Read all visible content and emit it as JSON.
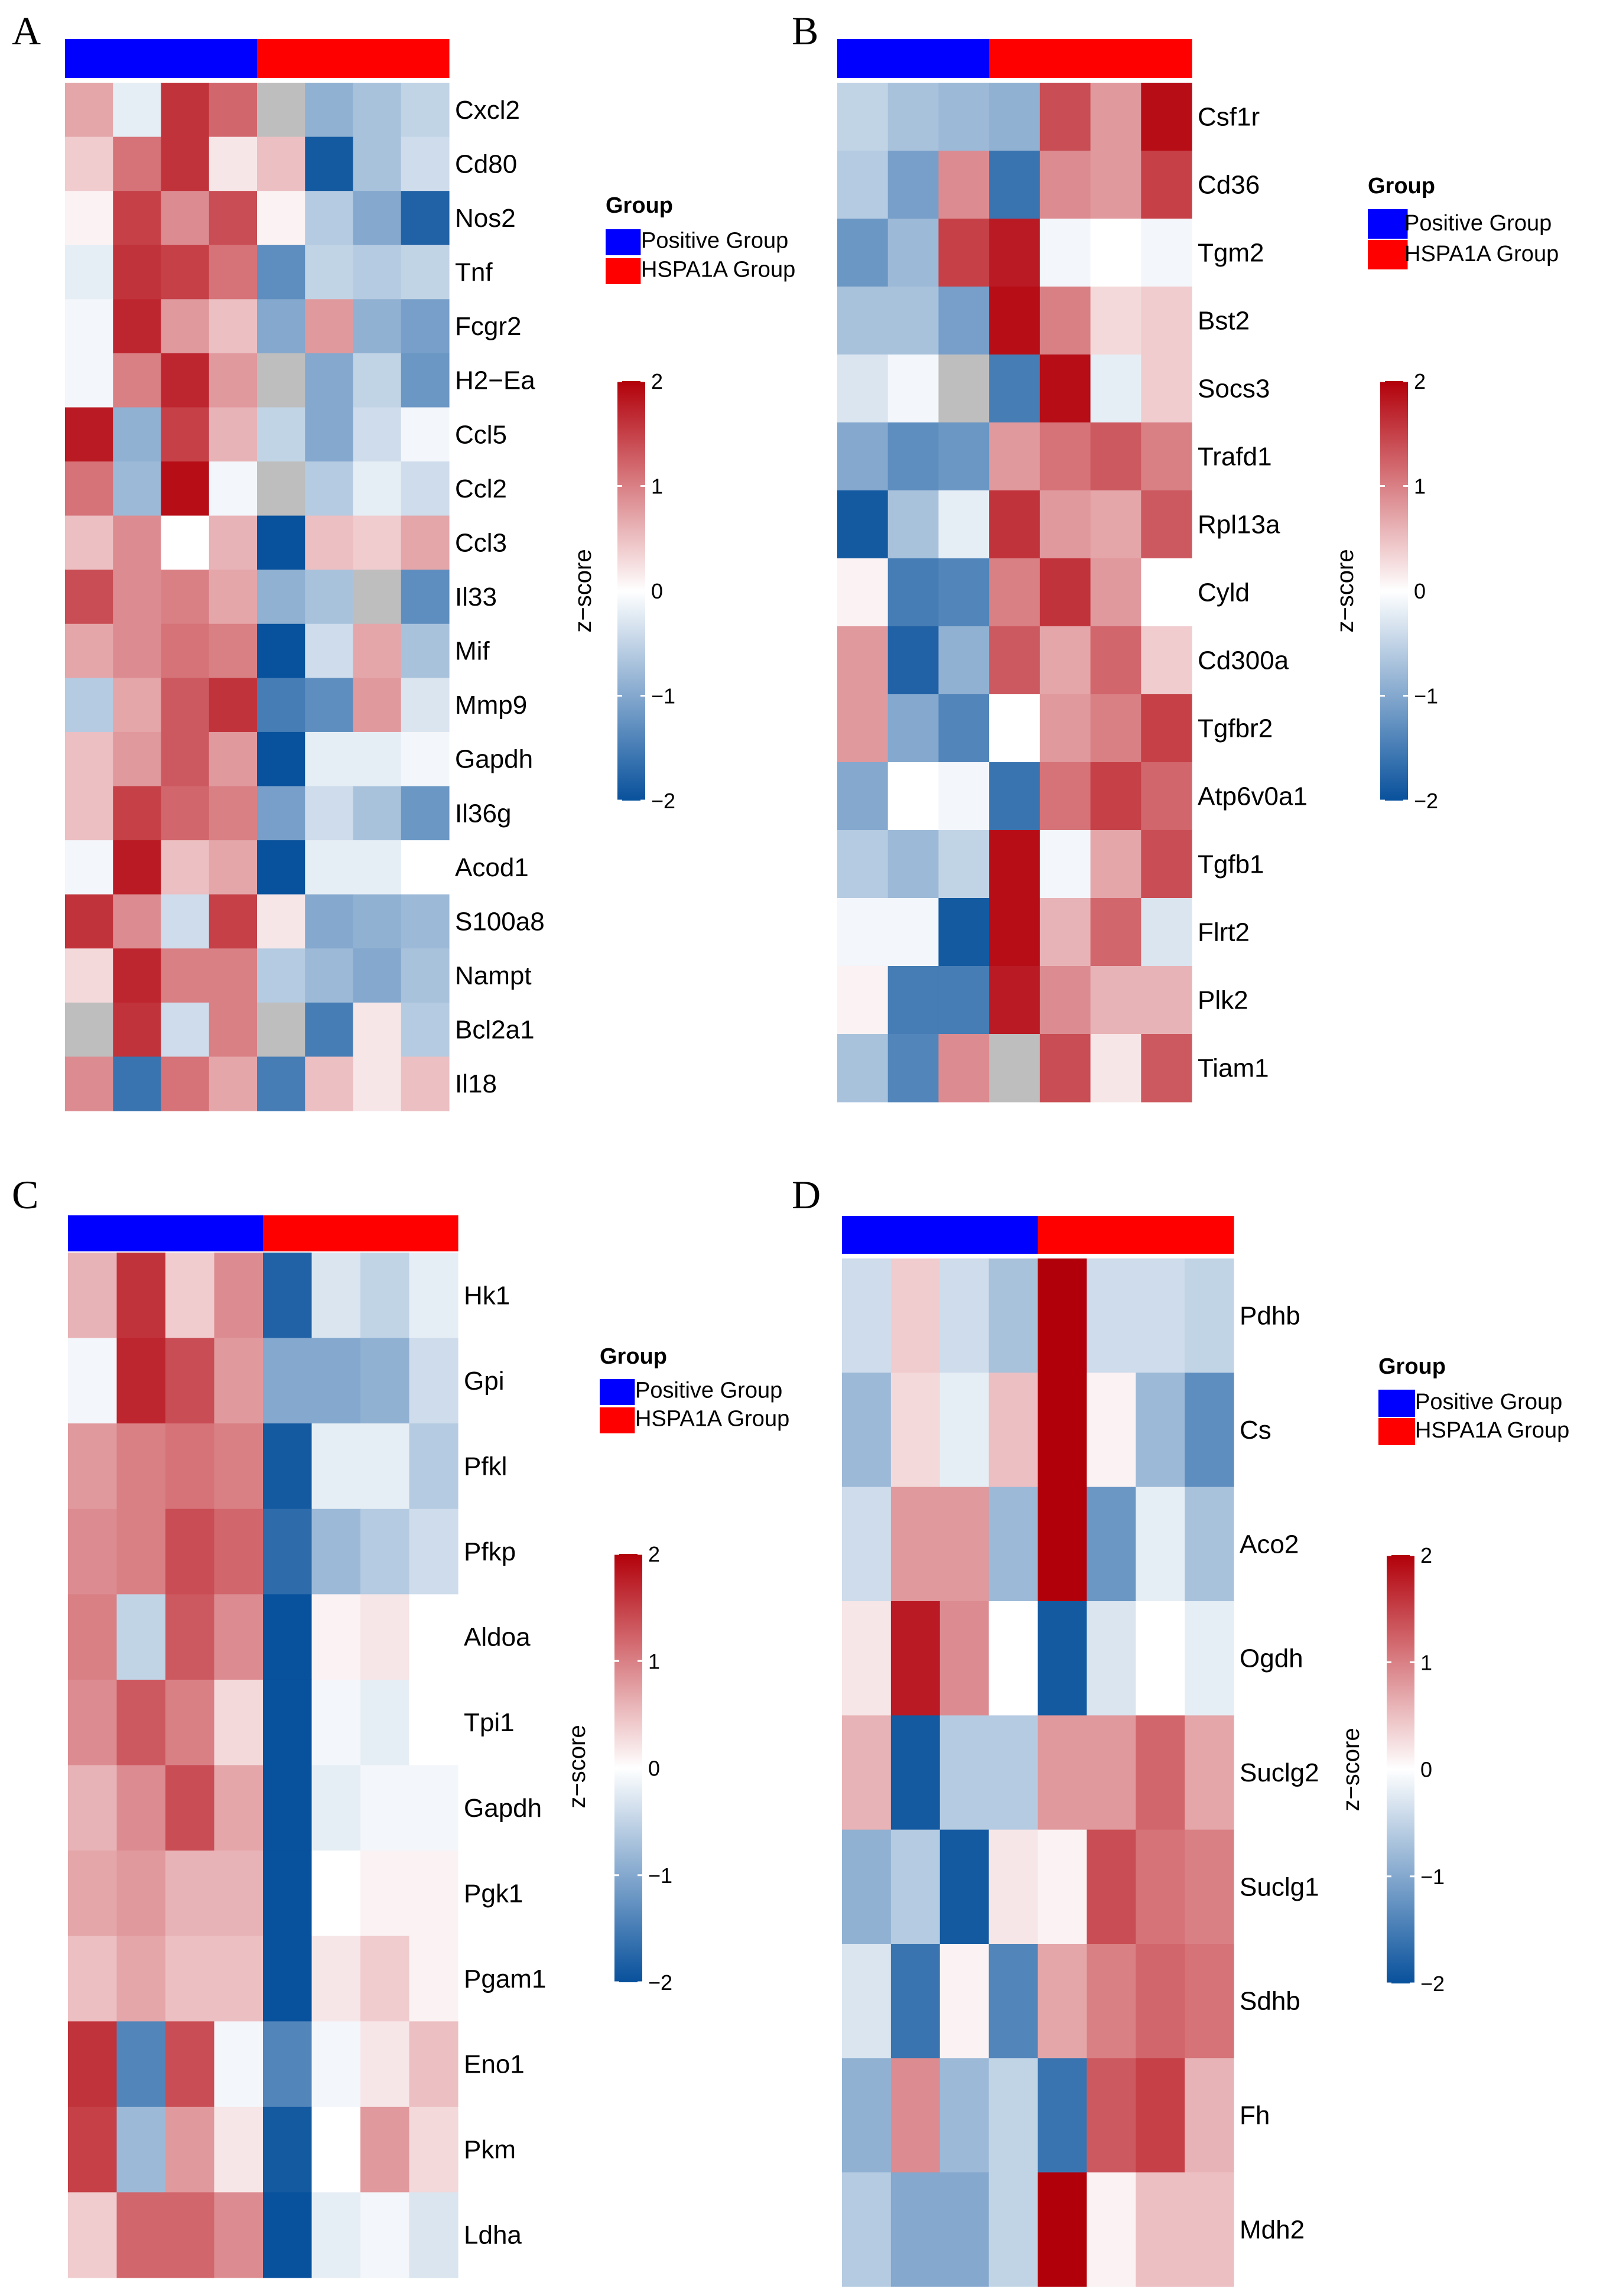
{
  "chart_data": [
    {
      "type": "heatmap",
      "panel": "A",
      "group_title": "Group",
      "group_labels": [
        "Positive Group",
        "HSPA1A Group"
      ],
      "group_colors": [
        "#0000ff",
        "#ff0000"
      ],
      "colorbar_label": "z−score",
      "colorbar_ticks": [
        "2",
        "1",
        "0",
        "−1",
        "−2"
      ],
      "colorbar_values": [
        2,
        1,
        0,
        -1,
        -2
      ],
      "color_range": [
        -2,
        2
      ],
      "colors": {
        "low": "#08519c",
        "mid": "#ffffff",
        "high": "#b2000a"
      },
      "column_groups": [
        0,
        0,
        0,
        0,
        1,
        1,
        1,
        1
      ],
      "genes": [
        "Cxcl2",
        "Cd80",
        "Nos2",
        "Tnf",
        "Fcgr2",
        "H2−Ea",
        "Ccl5",
        "Ccl2",
        "Ccl3",
        "Il33",
        "Mif",
        "Mmp9",
        "Gapdh",
        "Il36g",
        "Acod1",
        "S100a8",
        "Nampt",
        "Bcl2a1",
        "Il18"
      ],
      "values": [
        [
          0.7,
          -0.2,
          1.6,
          1.2,
          "NA",
          -0.9,
          -0.7,
          -0.5
        ],
        [
          0.4,
          1.1,
          1.6,
          0.2,
          0.5,
          -1.9,
          -0.7,
          -0.4
        ],
        [
          0.1,
          1.5,
          0.9,
          1.4,
          0.1,
          -0.6,
          -1.0,
          -1.8
        ],
        [
          -0.2,
          1.6,
          1.5,
          1.1,
          -1.3,
          -0.5,
          -0.6,
          -0.5
        ],
        [
          -0.1,
          1.7,
          0.8,
          0.5,
          -1.0,
          0.8,
          -0.9,
          -1.1
        ],
        [
          -0.1,
          1.0,
          1.7,
          0.8,
          "NA",
          -1.0,
          -0.5,
          -1.2
        ],
        [
          1.8,
          -0.9,
          1.5,
          0.6,
          -0.5,
          -1.0,
          -0.4,
          -0.1
        ],
        [
          1.1,
          -0.8,
          1.9,
          -0.1,
          "NA",
          -0.6,
          -0.2,
          -0.4
        ],
        [
          0.5,
          0.9,
          0.0,
          0.6,
          -2.0,
          0.5,
          0.4,
          0.7
        ],
        [
          1.4,
          0.9,
          1.0,
          0.7,
          -0.9,
          -0.7,
          "NA",
          -1.3
        ],
        [
          0.7,
          0.9,
          1.1,
          1.0,
          -2.0,
          -0.4,
          0.7,
          -0.7
        ],
        [
          -0.6,
          0.7,
          1.3,
          1.6,
          -1.5,
          -1.3,
          0.8,
          -0.3
        ],
        [
          0.5,
          0.8,
          1.3,
          0.8,
          -2.0,
          -0.2,
          -0.2,
          -0.1
        ],
        [
          0.5,
          1.5,
          1.2,
          1.0,
          -1.1,
          -0.4,
          -0.7,
          -1.2
        ],
        [
          -0.1,
          1.8,
          0.5,
          0.7,
          -2.0,
          -0.2,
          -0.2,
          0.0
        ],
        [
          1.6,
          0.9,
          -0.4,
          1.5,
          0.2,
          -1.0,
          -0.9,
          -0.8
        ],
        [
          0.3,
          1.7,
          1.0,
          1.0,
          -0.6,
          -0.8,
          -1.0,
          -0.7
        ],
        [
          "NA",
          1.6,
          -0.4,
          1.0,
          "NA",
          -1.5,
          0.2,
          -0.6
        ],
        [
          0.9,
          -1.6,
          1.1,
          0.7,
          -1.5,
          0.5,
          0.2,
          0.5
        ]
      ]
    },
    {
      "type": "heatmap",
      "panel": "B",
      "group_title": "Group",
      "group_labels": [
        "Positive Group",
        "HSPA1A Group"
      ],
      "group_colors": [
        "#0000ff",
        "#ff0000"
      ],
      "colorbar_label": "z−score",
      "colorbar_ticks": [
        "2",
        "1",
        "0",
        "−1",
        "−2"
      ],
      "colorbar_values": [
        2,
        1,
        0,
        -1,
        -2
      ],
      "color_range": [
        -2,
        2
      ],
      "colors": {
        "low": "#08519c",
        "mid": "#ffffff",
        "high": "#b2000a"
      },
      "column_groups": [
        0,
        0,
        0,
        1,
        1,
        1,
        1
      ],
      "genes": [
        "Csf1r",
        "Cd36",
        "Tgm2",
        "Bst2",
        "Socs3",
        "Trafd1",
        "Rpl13a",
        "Cyld",
        "Cd300a",
        "Tgfbr2",
        "Atp6v0a1",
        "Tgfb1",
        "Flrt2",
        "Plk2",
        "Tiam1"
      ],
      "values": [
        [
          -0.5,
          -0.7,
          -0.8,
          -0.9,
          1.4,
          0.8,
          1.9
        ],
        [
          -0.6,
          -1.1,
          0.9,
          -1.6,
          0.9,
          0.8,
          1.5
        ],
        [
          -1.2,
          -0.8,
          1.5,
          1.8,
          -0.1,
          0.0,
          -0.1
        ],
        [
          -0.7,
          -0.7,
          -1.1,
          1.9,
          1.0,
          0.3,
          0.4
        ],
        [
          -0.3,
          -0.1,
          "NA",
          -1.5,
          1.9,
          -0.2,
          0.4
        ],
        [
          -1.0,
          -1.3,
          -1.2,
          0.8,
          1.1,
          1.3,
          1.0
        ],
        [
          -1.9,
          -0.7,
          -0.2,
          1.6,
          0.8,
          0.7,
          1.3
        ],
        [
          0.1,
          -1.5,
          -1.4,
          1.0,
          1.6,
          0.8,
          0.0
        ],
        [
          0.8,
          -1.8,
          -0.9,
          1.3,
          0.7,
          1.2,
          0.4
        ],
        [
          0.8,
          -1.0,
          -1.4,
          0.0,
          0.8,
          1.0,
          1.5
        ],
        [
          -1.0,
          0.0,
          -0.1,
          -1.6,
          1.1,
          1.5,
          1.2
        ],
        [
          -0.6,
          -0.8,
          -0.5,
          1.9,
          -0.1,
          0.7,
          1.4
        ],
        [
          -0.1,
          -0.1,
          -1.9,
          1.9,
          0.6,
          1.2,
          -0.3
        ],
        [
          0.1,
          -1.5,
          -1.5,
          1.8,
          0.9,
          0.6,
          0.6
        ],
        [
          -0.7,
          -1.4,
          0.9,
          "NA",
          1.4,
          0.2,
          1.3
        ]
      ]
    },
    {
      "type": "heatmap",
      "panel": "C",
      "group_title": "Group",
      "group_labels": [
        "Positive Group",
        "HSPA1A Group"
      ],
      "group_colors": [
        "#0000ff",
        "#ff0000"
      ],
      "colorbar_label": "z−score",
      "colorbar_ticks": [
        "2",
        "1",
        "0",
        "−1",
        "−2"
      ],
      "colorbar_values": [
        2,
        1,
        0,
        -1,
        -2
      ],
      "color_range": [
        -2,
        2
      ],
      "colors": {
        "low": "#08519c",
        "mid": "#ffffff",
        "high": "#b2000a"
      },
      "column_groups": [
        0,
        0,
        0,
        0,
        1,
        1,
        1,
        1
      ],
      "genes": [
        "Hk1",
        "Gpi",
        "Pfkl",
        "Pfkp",
        "Aldoa",
        "Tpi1",
        "Gapdh",
        "Pgk1",
        "Pgam1",
        "Eno1",
        "Pkm",
        "Ldha"
      ],
      "values": [
        [
          0.6,
          1.6,
          0.4,
          0.9,
          -1.8,
          -0.3,
          -0.5,
          -0.2
        ],
        [
          -0.1,
          1.7,
          1.4,
          0.8,
          -1.0,
          -1.0,
          -0.9,
          -0.4
        ],
        [
          0.8,
          1.0,
          1.1,
          1.0,
          -1.9,
          -0.2,
          -0.2,
          -0.6
        ],
        [
          0.9,
          1.0,
          1.4,
          1.2,
          -1.7,
          -0.8,
          -0.6,
          -0.4
        ],
        [
          1.0,
          -0.5,
          1.3,
          0.9,
          -2.0,
          0.1,
          0.2,
          0.0
        ],
        [
          0.9,
          1.3,
          1.0,
          0.3,
          -2.0,
          -0.1,
          -0.2,
          0.0
        ],
        [
          0.6,
          0.9,
          1.4,
          0.7,
          -2.0,
          -0.2,
          -0.1,
          -0.1
        ],
        [
          0.7,
          0.8,
          0.6,
          0.6,
          -2.0,
          0.0,
          0.1,
          0.1
        ],
        [
          0.5,
          0.7,
          0.5,
          0.5,
          -2.0,
          0.2,
          0.4,
          0.1
        ],
        [
          1.6,
          -1.4,
          1.4,
          -0.1,
          -1.4,
          -0.1,
          0.2,
          0.5
        ],
        [
          1.5,
          -0.8,
          0.8,
          0.2,
          -1.9,
          0.0,
          0.8,
          0.3
        ],
        [
          0.4,
          1.2,
          1.2,
          0.9,
          -2.0,
          -0.2,
          -0.1,
          -0.3
        ]
      ]
    },
    {
      "type": "heatmap",
      "panel": "D",
      "group_title": "Group",
      "group_labels": [
        "Positive Group",
        "HSPA1A Group"
      ],
      "group_colors": [
        "#0000ff",
        "#ff0000"
      ],
      "colorbar_label": "z−score",
      "colorbar_ticks": [
        "2",
        "1",
        "0",
        "−1",
        "−2"
      ],
      "colorbar_values": [
        2,
        1,
        0,
        -1,
        -2
      ],
      "color_range": [
        -2,
        2
      ],
      "colors": {
        "low": "#08519c",
        "mid": "#ffffff",
        "high": "#b2000a"
      },
      "column_groups": [
        0,
        0,
        0,
        0,
        1,
        1,
        1,
        1
      ],
      "genes": [
        "Pdhb",
        "Cs",
        "Aco2",
        "Ogdh",
        "Suclg2",
        "Suclg1",
        "Sdhb",
        "Fh",
        "Mdh2"
      ],
      "values": [
        [
          -0.4,
          0.4,
          -0.4,
          -0.7,
          2.0,
          -0.4,
          -0.4,
          -0.5
        ],
        [
          -0.8,
          0.3,
          -0.2,
          0.5,
          2.0,
          0.1,
          -0.8,
          -1.3
        ],
        [
          -0.4,
          0.8,
          0.8,
          -0.8,
          2.0,
          -1.2,
          -0.2,
          -0.7
        ],
        [
          0.2,
          1.8,
          0.9,
          0.0,
          -1.9,
          -0.3,
          0.0,
          -0.2
        ],
        [
          0.6,
          -1.9,
          -0.6,
          -0.6,
          0.8,
          0.8,
          1.2,
          0.7
        ],
        [
          -0.9,
          -0.6,
          -1.9,
          0.2,
          0.1,
          1.4,
          1.1,
          1.0
        ],
        [
          -0.3,
          -1.6,
          0.1,
          -1.4,
          0.7,
          1.0,
          1.2,
          1.1
        ],
        [
          -0.9,
          0.9,
          -0.8,
          -0.5,
          -1.6,
          1.3,
          1.5,
          0.6
        ],
        [
          -0.6,
          -1.0,
          -1.0,
          -0.5,
          2.0,
          0.1,
          0.5,
          0.5
        ]
      ]
    }
  ]
}
